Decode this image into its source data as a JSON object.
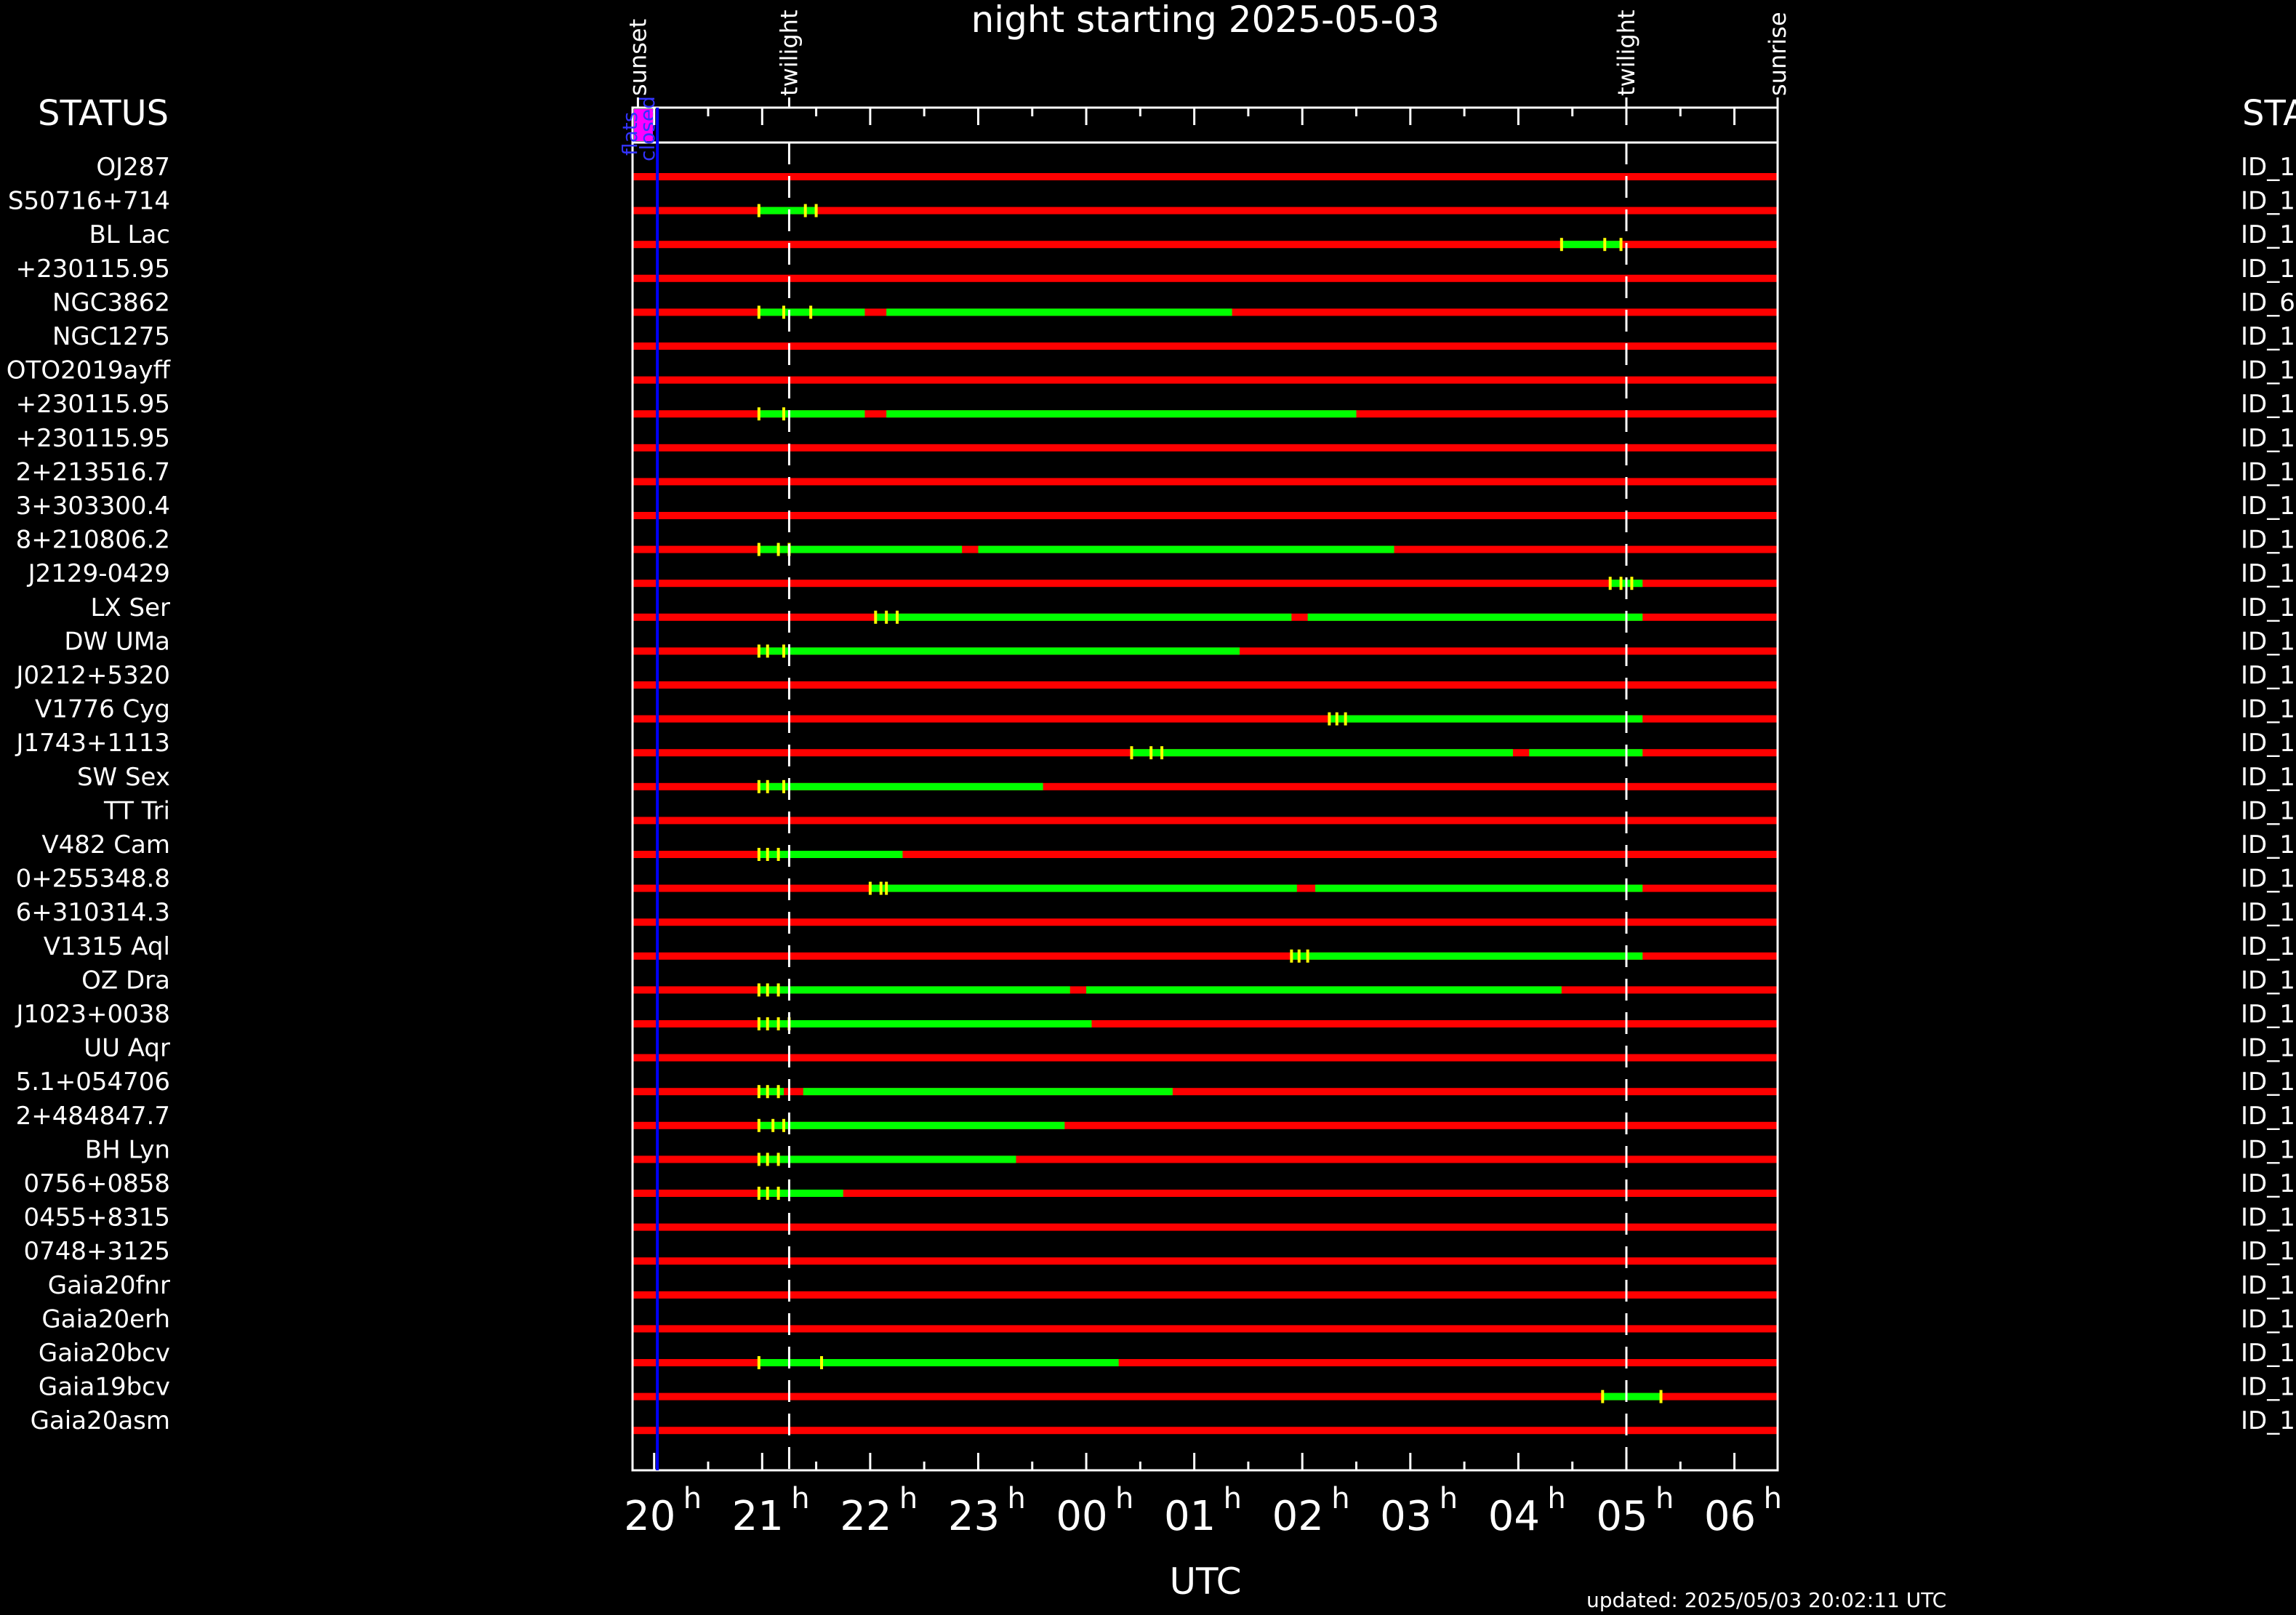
{
  "chart_data": {
    "type": "gantt",
    "title": "night starting 2025-05-03",
    "xlabel": "UTC",
    "updated": "updated: 2025/05/03 20:02:11 UTC",
    "status_left": "STATUS",
    "status_right": "STA",
    "x_range_hours_utc": [
      19.8,
      30.4
    ],
    "x_ticks": [
      {
        "hour": 20,
        "hh": "20"
      },
      {
        "hour": 21,
        "hh": "21"
      },
      {
        "hour": 22,
        "hh": "22"
      },
      {
        "hour": 23,
        "hh": "23"
      },
      {
        "hour": 24,
        "hh": "00"
      },
      {
        "hour": 25,
        "hh": "01"
      },
      {
        "hour": 26,
        "hh": "02"
      },
      {
        "hour": 27,
        "hh": "03"
      },
      {
        "hour": 28,
        "hh": "04"
      },
      {
        "hour": 29,
        "hh": "05"
      },
      {
        "hour": 30,
        "hh": "06"
      }
    ],
    "tick_suffix": "h",
    "events": [
      {
        "label": "sunset",
        "hour": 19.85
      },
      {
        "label": "twilight",
        "hour": 21.25
      },
      {
        "label": "twilight",
        "hour": 29.0
      },
      {
        "label": "sunrise",
        "hour": 30.4
      }
    ],
    "twilight_hours": [
      21.25,
      29.0
    ],
    "status_markers": {
      "flats": "flats",
      "closed": "closed",
      "now_hour": 20.03
    },
    "colors": {
      "unobservable": "#ff0000",
      "observable": "#00ff00",
      "tick": "#ffff00",
      "now": "#0000ff",
      "status_box": "#ff00ff"
    },
    "targets": [
      {
        "name": "OJ287",
        "id": "ID_1",
        "observable": []
      },
      {
        "name": "S50716+714",
        "id": "ID_1",
        "observable": [
          [
            20.97,
            21.5
          ]
        ],
        "ticks": [
          20.97,
          21.4,
          21.5
        ]
      },
      {
        "name": "BL Lac",
        "id": "ID_1",
        "observable": [
          [
            28.4,
            28.95
          ]
        ],
        "ticks": [
          28.4,
          28.8,
          28.95
        ]
      },
      {
        "name": "+230115.95",
        "id": "ID_1",
        "observable": []
      },
      {
        "name": "NGC3862",
        "id": "ID_6",
        "observable": [
          [
            20.97,
            21.95
          ],
          [
            22.15,
            25.35
          ]
        ],
        "ticks": [
          20.97,
          21.2,
          21.45
        ]
      },
      {
        "name": "NGC1275",
        "id": "ID_1",
        "observable": []
      },
      {
        "name": "OTO2019ayff",
        "id": "ID_1",
        "observable": []
      },
      {
        "name": "+230115.95",
        "id": "ID_1",
        "observable": [
          [
            20.97,
            21.95
          ],
          [
            22.15,
            26.5
          ]
        ],
        "ticks": [
          20.97,
          21.2
        ]
      },
      {
        "name": "+230115.95",
        "id": "ID_1",
        "observable": []
      },
      {
        "name": "2+213516.7",
        "id": "ID_1",
        "observable": []
      },
      {
        "name": "3+303300.4",
        "id": "ID_1",
        "observable": []
      },
      {
        "name": "8+210806.2",
        "id": "ID_1",
        "observable": [
          [
            20.97,
            22.85
          ],
          [
            23.0,
            26.85
          ]
        ],
        "ticks": [
          20.97,
          21.15,
          21.25
        ]
      },
      {
        "name": "J2129-0429",
        "id": "ID_1",
        "observable": [
          [
            28.85,
            29.15
          ]
        ],
        "ticks": [
          28.85,
          28.95,
          29.05
        ]
      },
      {
        "name": "LX Ser",
        "id": "ID_1",
        "observable": [
          [
            22.05,
            25.9
          ],
          [
            26.05,
            29.15
          ]
        ],
        "ticks": [
          22.05,
          22.15,
          22.25
        ]
      },
      {
        "name": "DW UMa",
        "id": "ID_1",
        "observable": [
          [
            20.97,
            25.42
          ]
        ],
        "ticks": [
          20.97,
          21.05,
          21.2
        ]
      },
      {
        "name": "J0212+5320",
        "id": "ID_1",
        "observable": []
      },
      {
        "name": "V1776 Cyg",
        "id": "ID_1",
        "observable": [
          [
            26.25,
            29.15
          ]
        ],
        "ticks": [
          26.25,
          26.32,
          26.4
        ]
      },
      {
        "name": "J1743+1113",
        "id": "ID_1",
        "observable": [
          [
            24.42,
            27.95
          ],
          [
            28.1,
            29.15
          ]
        ],
        "ticks": [
          24.42,
          24.6,
          24.7
        ]
      },
      {
        "name": "SW Sex",
        "id": "ID_1",
        "observable": [
          [
            20.97,
            23.6
          ]
        ],
        "ticks": [
          20.97,
          21.05,
          21.2
        ]
      },
      {
        "name": "TT Tri",
        "id": "ID_1",
        "observable": []
      },
      {
        "name": "V482 Cam",
        "id": "ID_1",
        "observable": [
          [
            20.97,
            22.3
          ]
        ],
        "ticks": [
          20.97,
          21.05,
          21.15
        ]
      },
      {
        "name": "0+255348.8",
        "id": "ID_1",
        "observable": [
          [
            22.0,
            25.95
          ],
          [
            26.12,
            29.15
          ]
        ],
        "ticks": [
          22.0,
          22.1,
          22.15
        ]
      },
      {
        "name": "6+310314.3",
        "id": "ID_1",
        "observable": []
      },
      {
        "name": "V1315 Aql",
        "id": "ID_1",
        "observable": [
          [
            25.9,
            29.15
          ]
        ],
        "ticks": [
          25.9,
          25.97,
          26.05
        ]
      },
      {
        "name": "OZ Dra",
        "id": "ID_1",
        "observable": [
          [
            20.97,
            23.85
          ],
          [
            24.0,
            28.4
          ]
        ],
        "ticks": [
          20.97,
          21.05,
          21.15
        ]
      },
      {
        "name": "J1023+0038",
        "id": "ID_1",
        "observable": [
          [
            20.97,
            24.05
          ]
        ],
        "ticks": [
          20.97,
          21.05,
          21.15,
          21.25
        ]
      },
      {
        "name": "UU Aqr",
        "id": "ID_1",
        "observable": []
      },
      {
        "name": "5.1+054706",
        "id": "ID_1",
        "observable": [
          [
            20.97,
            21.2
          ],
          [
            21.38,
            24.8
          ]
        ],
        "ticks": [
          20.97,
          21.05,
          21.15
        ]
      },
      {
        "name": "2+484847.7",
        "id": "ID_1",
        "observable": [
          [
            20.97,
            23.8
          ]
        ],
        "ticks": [
          20.97,
          21.1,
          21.2
        ]
      },
      {
        "name": "BH Lyn",
        "id": "ID_1",
        "observable": [
          [
            20.97,
            23.35
          ]
        ],
        "ticks": [
          20.97,
          21.05,
          21.15
        ]
      },
      {
        "name": "0756+0858",
        "id": "ID_1",
        "observable": [
          [
            20.97,
            21.75
          ]
        ],
        "ticks": [
          20.97,
          21.05,
          21.15
        ]
      },
      {
        "name": "0455+8315",
        "id": "ID_1",
        "observable": []
      },
      {
        "name": "0748+3125",
        "id": "ID_1",
        "observable": []
      },
      {
        "name": "Gaia20fnr",
        "id": "ID_1",
        "observable": []
      },
      {
        "name": "Gaia20erh",
        "id": "ID_1",
        "observable": []
      },
      {
        "name": "Gaia20bcv",
        "id": "ID_1",
        "observable": [
          [
            20.97,
            24.3
          ]
        ],
        "ticks": [
          20.97,
          21.55
        ]
      },
      {
        "name": "Gaia19bcv",
        "id": "ID_1",
        "observable": [
          [
            28.78,
            29.32
          ]
        ],
        "ticks": [
          28.78,
          29.32
        ]
      },
      {
        "name": "Gaia20asm",
        "id": "ID_1",
        "observable": []
      }
    ]
  }
}
